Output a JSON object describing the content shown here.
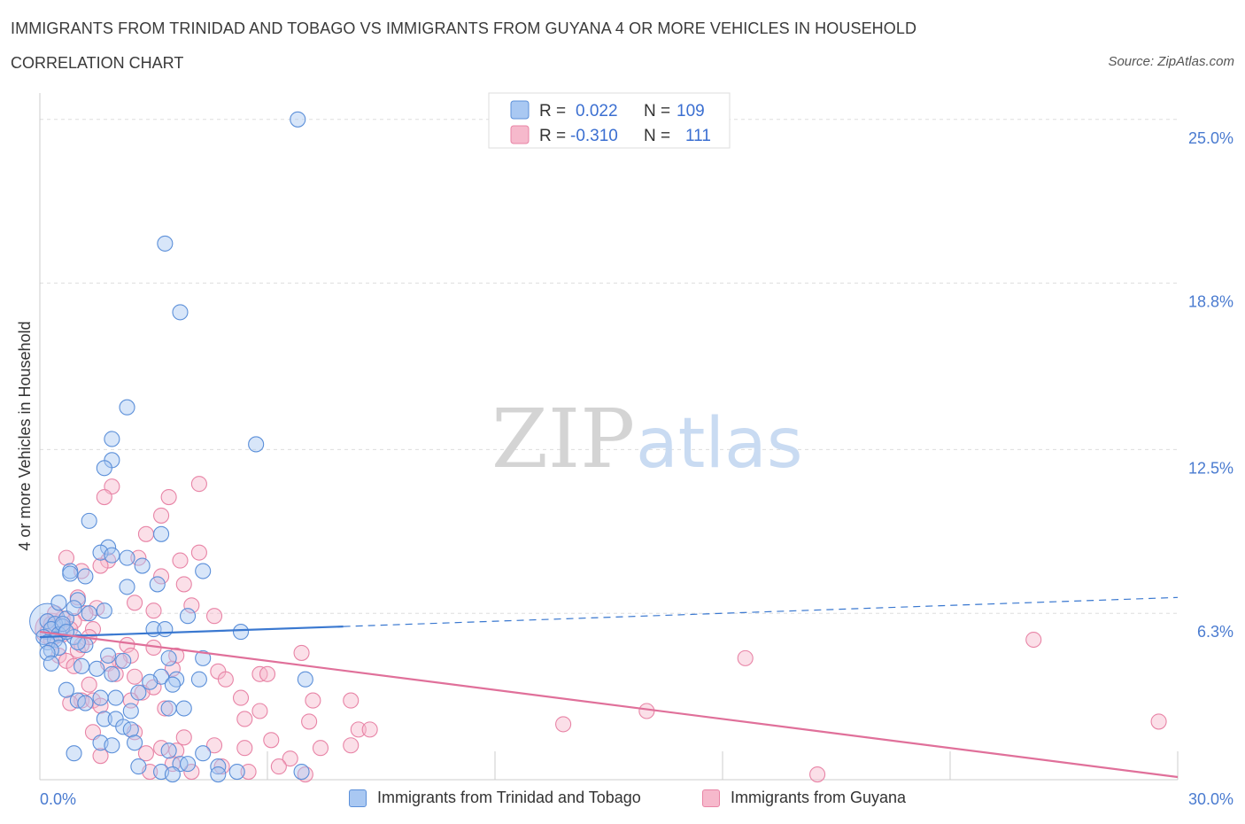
{
  "header": {
    "title": "IMMIGRANTS FROM TRINIDAD AND TOBAGO VS IMMIGRANTS FROM GUYANA 4 OR MORE VEHICLES IN HOUSEHOLD",
    "subtitle": "CORRELATION CHART",
    "source": "Source: ZipAtlas.com"
  },
  "watermark": {
    "zip": "ZIP",
    "atlas": "atlas"
  },
  "colors": {
    "blue_fill": "#a9c8f2",
    "blue_stroke": "#5b8fd9",
    "blue_line": "#3a78d0",
    "pink_fill": "#f6b9cc",
    "pink_stroke": "#e884a6",
    "pink_line": "#e0709a",
    "grid": "#dddddd",
    "tick_text": "#4a7bd0"
  },
  "legend": {
    "rows": [
      {
        "r_label": "R =",
        "r_value": "0.022",
        "n_label": "N =",
        "n_value": "109"
      },
      {
        "r_label": "R =",
        "r_value": "-0.310",
        "n_label": "N =",
        "n_value": "111"
      }
    ]
  },
  "chart_data": {
    "type": "scatter",
    "xlabel": "",
    "ylabel": "4 or more Vehicles in Household",
    "xlim": [
      0,
      30
    ],
    "ylim": [
      0,
      26
    ],
    "x_tick_labels": [
      "0.0%",
      "30.0%"
    ],
    "y_ticks": [
      {
        "value": 6.3,
        "label": "6.3%"
      },
      {
        "value": 12.5,
        "label": "12.5%"
      },
      {
        "value": 18.8,
        "label": "18.8%"
      },
      {
        "value": 25.0,
        "label": "25.0%"
      }
    ],
    "grid": true,
    "series": [
      {
        "name": "Immigrants from Trinidad and Tobago",
        "color": "blue",
        "R": 0.022,
        "N": 109,
        "trend": {
          "solid_x": [
            0,
            8
          ],
          "dashed_x": [
            8,
            30
          ],
          "y_at_0": 5.4,
          "y_at_30": 6.9
        },
        "points": [
          [
            6.8,
            25.0
          ],
          [
            3.3,
            20.3
          ],
          [
            3.7,
            17.7
          ],
          [
            2.3,
            14.1
          ],
          [
            1.9,
            12.9
          ],
          [
            5.7,
            12.7
          ],
          [
            1.9,
            12.1
          ],
          [
            1.7,
            11.8
          ],
          [
            1.3,
            9.8
          ],
          [
            3.2,
            9.3
          ],
          [
            1.8,
            8.8
          ],
          [
            1.6,
            8.6
          ],
          [
            1.9,
            8.5
          ],
          [
            2.3,
            8.4
          ],
          [
            2.7,
            8.1
          ],
          [
            0.8,
            7.9
          ],
          [
            4.3,
            7.9
          ],
          [
            0.8,
            7.8
          ],
          [
            3.1,
            7.4
          ],
          [
            2.3,
            7.3
          ],
          [
            1.0,
            6.8
          ],
          [
            0.5,
            6.7
          ],
          [
            1.7,
            6.4
          ],
          [
            3.9,
            6.2
          ],
          [
            0.7,
            6.1
          ],
          [
            0.2,
            6.0
          ],
          [
            0.4,
            5.9
          ],
          [
            0.6,
            5.8
          ],
          [
            0.3,
            5.7
          ],
          [
            3.0,
            5.7
          ],
          [
            3.3,
            5.7
          ],
          [
            5.3,
            5.6
          ],
          [
            0.5,
            5.5
          ],
          [
            0.1,
            5.4
          ],
          [
            0.9,
            5.4
          ],
          [
            0.4,
            5.3
          ],
          [
            0.2,
            5.2
          ],
          [
            1.2,
            5.1
          ],
          [
            0.5,
            5.0
          ],
          [
            0.3,
            4.9
          ],
          [
            0.2,
            4.8
          ],
          [
            1.8,
            4.7
          ],
          [
            3.4,
            4.6
          ],
          [
            4.3,
            4.6
          ],
          [
            2.2,
            4.5
          ],
          [
            0.3,
            4.4
          ],
          [
            1.1,
            4.3
          ],
          [
            1.5,
            4.2
          ],
          [
            1.9,
            4.0
          ],
          [
            3.2,
            3.9
          ],
          [
            3.6,
            3.8
          ],
          [
            4.2,
            3.8
          ],
          [
            7.0,
            3.8
          ],
          [
            2.9,
            3.7
          ],
          [
            3.5,
            3.6
          ],
          [
            0.7,
            3.4
          ],
          [
            2.6,
            3.3
          ],
          [
            1.6,
            3.1
          ],
          [
            2.0,
            3.1
          ],
          [
            1.0,
            3.0
          ],
          [
            1.2,
            2.9
          ],
          [
            3.4,
            2.7
          ],
          [
            3.8,
            2.7
          ],
          [
            2.4,
            2.6
          ],
          [
            1.7,
            2.3
          ],
          [
            2.0,
            2.3
          ],
          [
            2.2,
            2.0
          ],
          [
            2.4,
            1.9
          ],
          [
            1.6,
            1.4
          ],
          [
            2.5,
            1.4
          ],
          [
            1.9,
            1.3
          ],
          [
            0.9,
            1.0
          ],
          [
            3.4,
            1.1
          ],
          [
            4.3,
            1.0
          ],
          [
            2.6,
            0.5
          ],
          [
            3.7,
            0.6
          ],
          [
            3.9,
            0.6
          ],
          [
            4.7,
            0.5
          ],
          [
            3.2,
            0.3
          ],
          [
            5.2,
            0.3
          ],
          [
            6.9,
            0.3
          ],
          [
            3.5,
            0.2
          ],
          [
            4.7,
            0.2
          ],
          [
            1.2,
            7.7
          ],
          [
            0.9,
            6.5
          ],
          [
            1.3,
            6.3
          ],
          [
            0.6,
            5.9
          ],
          [
            0.7,
            5.6
          ],
          [
            1.0,
            5.2
          ]
        ]
      },
      {
        "name": "Immigrants from Guyana",
        "color": "pink",
        "R": -0.31,
        "N": 111,
        "trend": {
          "solid_x": [
            0,
            30
          ],
          "y_at_0": 5.6,
          "y_at_30": 0.1
        },
        "points": [
          [
            1.9,
            11.1
          ],
          [
            4.2,
            11.2
          ],
          [
            1.7,
            10.7
          ],
          [
            3.4,
            10.7
          ],
          [
            3.2,
            10.0
          ],
          [
            2.8,
            9.3
          ],
          [
            4.2,
            8.6
          ],
          [
            0.7,
            8.4
          ],
          [
            2.6,
            8.4
          ],
          [
            1.8,
            8.3
          ],
          [
            1.6,
            8.1
          ],
          [
            3.7,
            8.3
          ],
          [
            1.1,
            7.9
          ],
          [
            3.2,
            7.7
          ],
          [
            3.8,
            7.4
          ],
          [
            1.0,
            6.9
          ],
          [
            2.5,
            6.7
          ],
          [
            4.0,
            6.6
          ],
          [
            1.5,
            6.5
          ],
          [
            3.0,
            6.4
          ],
          [
            1.2,
            6.3
          ],
          [
            4.6,
            6.2
          ],
          [
            0.6,
            6.1
          ],
          [
            0.9,
            6.0
          ],
          [
            0.3,
            5.9
          ],
          [
            0.4,
            5.8
          ],
          [
            1.4,
            5.7
          ],
          [
            0.2,
            5.6
          ],
          [
            0.6,
            5.5
          ],
          [
            1.3,
            5.4
          ],
          [
            0.3,
            5.3
          ],
          [
            2.3,
            5.1
          ],
          [
            3.0,
            5.0
          ],
          [
            1.0,
            4.9
          ],
          [
            6.9,
            4.8
          ],
          [
            0.5,
            4.7
          ],
          [
            2.4,
            4.7
          ],
          [
            3.6,
            4.7
          ],
          [
            18.6,
            4.6
          ],
          [
            0.7,
            4.5
          ],
          [
            2.1,
            4.5
          ],
          [
            1.8,
            4.4
          ],
          [
            0.9,
            4.3
          ],
          [
            3.5,
            4.2
          ],
          [
            4.7,
            4.1
          ],
          [
            5.8,
            4.0
          ],
          [
            6.0,
            4.0
          ],
          [
            2.5,
            3.9
          ],
          [
            4.9,
            3.8
          ],
          [
            1.3,
            3.6
          ],
          [
            3.0,
            3.5
          ],
          [
            2.7,
            3.3
          ],
          [
            5.3,
            3.1
          ],
          [
            1.1,
            3.0
          ],
          [
            1.4,
            3.0
          ],
          [
            2.4,
            3.0
          ],
          [
            7.2,
            3.0
          ],
          [
            8.2,
            3.0
          ],
          [
            0.8,
            2.9
          ],
          [
            1.6,
            2.8
          ],
          [
            3.3,
            2.7
          ],
          [
            5.8,
            2.6
          ],
          [
            16.0,
            2.6
          ],
          [
            5.4,
            2.3
          ],
          [
            7.1,
            2.2
          ],
          [
            13.8,
            2.1
          ],
          [
            29.5,
            2.2
          ],
          [
            8.4,
            1.9
          ],
          [
            8.7,
            1.9
          ],
          [
            1.4,
            1.8
          ],
          [
            2.5,
            1.8
          ],
          [
            3.8,
            1.6
          ],
          [
            6.1,
            1.5
          ],
          [
            4.6,
            1.3
          ],
          [
            3.2,
            1.2
          ],
          [
            5.4,
            1.2
          ],
          [
            7.4,
            1.2
          ],
          [
            8.2,
            1.3
          ],
          [
            3.6,
            1.1
          ],
          [
            2.8,
            1.0
          ],
          [
            6.6,
            0.8
          ],
          [
            1.6,
            0.9
          ],
          [
            3.5,
            0.6
          ],
          [
            4.8,
            0.5
          ],
          [
            6.3,
            0.5
          ],
          [
            2.9,
            0.3
          ],
          [
            4.0,
            0.3
          ],
          [
            5.5,
            0.3
          ],
          [
            7.0,
            0.2
          ],
          [
            20.5,
            0.2
          ],
          [
            26.2,
            5.3
          ],
          [
            0.4,
            6.3
          ],
          [
            0.8,
            5.7
          ],
          [
            1.1,
            5.1
          ],
          [
            2.0,
            4.0
          ]
        ]
      }
    ]
  },
  "bottom_legend": {
    "items": [
      {
        "label": "Immigrants from Trinidad and Tobago"
      },
      {
        "label": "Immigrants from Guyana"
      }
    ]
  }
}
